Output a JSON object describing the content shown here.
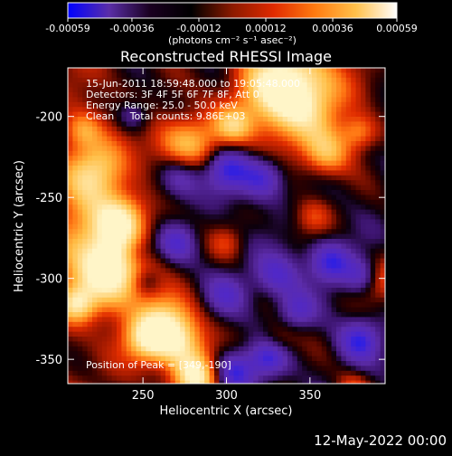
{
  "chart_data": {
    "type": "heatmap",
    "title": "Reconstructed RHESSI Image",
    "xlabel": "Heliocentric X (arcsec)",
    "ylabel": "Heliocentric Y (arcsec)",
    "xlim": [
      205,
      395
    ],
    "ylim": [
      -365,
      -170
    ],
    "x_ticks": [
      250,
      300,
      350
    ],
    "y_ticks": [
      -200,
      -250,
      -300,
      -350
    ],
    "grid": false,
    "colorbar": {
      "ticks": [
        -0.00059,
        -0.00036,
        -0.00012,
        0.00012,
        0.00036,
        0.00059
      ],
      "tick_labels": [
        "-0.00059",
        "-0.00036",
        "-0.00012",
        "0.00012",
        "0.00036",
        "0.00059"
      ],
      "unit_label": "(photons cm⁻² s⁻¹ asec⁻²)",
      "colors": [
        "#0000ff",
        "#5a2ea8",
        "#1a0020",
        "#000000",
        "#8b1a00",
        "#e02a00",
        "#ff7a10",
        "#ffc04a",
        "#ffffff"
      ]
    },
    "annotations": [
      "15-Jun-2011 18:59:48.000 to 19:05:48.000",
      "Detectors: 3F 4F 5F 6F 7F 8F, Att 0",
      "Energy Range: 25.0 - 50.0 keV",
      "Clean     Total counts: 9.86E+03",
      "Position of Peak = [349,-190]"
    ],
    "peak": {
      "x": 349,
      "y": -190
    }
  },
  "footer_date": "12-May-2022 00:00"
}
